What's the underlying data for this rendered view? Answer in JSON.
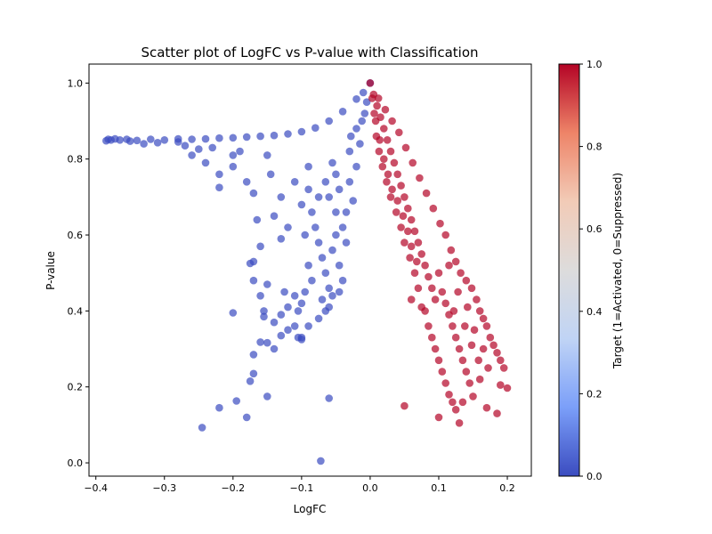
{
  "chart_data": {
    "type": "scatter",
    "title": "Scatter plot of LogFC vs P-value with Classification",
    "xlabel": "LogFC",
    "ylabel": "P-value",
    "xlim": [
      -0.41,
      0.235
    ],
    "ylim": [
      -0.035,
      1.05
    ],
    "xticks": [
      -0.4,
      -0.3,
      -0.2,
      -0.1,
      0.0,
      0.1,
      0.2
    ],
    "xtick_labels": [
      "−0.4",
      "−0.3",
      "−0.2",
      "−0.1",
      "0.0",
      "0.1",
      "0.2"
    ],
    "yticks": [
      0.0,
      0.2,
      0.4,
      0.6,
      0.8,
      1.0
    ],
    "ytick_labels": [
      "0.0",
      "0.2",
      "0.4",
      "0.6",
      "0.8",
      "1.0"
    ],
    "colorbar": {
      "label": "Target (1=Activated, 0=Suppressed)",
      "range": [
        0.0,
        1.0
      ],
      "ticks": [
        0.0,
        0.2,
        0.4,
        0.6,
        0.8,
        1.0
      ],
      "tick_labels": [
        "0.0",
        "0.2",
        "0.4",
        "0.6",
        "0.8",
        "1.0"
      ],
      "colormap": "coolwarm",
      "colors": [
        "#3b4cc0",
        "#7b9ff9",
        "#c0d4f5",
        "#dddcdc",
        "#f2cbb7",
        "#ee8468",
        "#b40426"
      ]
    },
    "series": [
      {
        "target": 0,
        "color": "#3b4cc0",
        "points": [
          [
            -0.385,
            0.848
          ],
          [
            -0.382,
            0.852
          ],
          [
            -0.378,
            0.85
          ],
          [
            -0.372,
            0.853
          ],
          [
            -0.365,
            0.85
          ],
          [
            -0.34,
            0.849
          ],
          [
            -0.32,
            0.852
          ],
          [
            -0.3,
            0.85
          ],
          [
            -0.28,
            0.853
          ],
          [
            -0.26,
            0.852
          ],
          [
            -0.24,
            0.853
          ],
          [
            -0.22,
            0.855
          ],
          [
            -0.2,
            0.856
          ],
          [
            -0.18,
            0.858
          ],
          [
            -0.16,
            0.86
          ],
          [
            -0.14,
            0.862
          ],
          [
            -0.12,
            0.866
          ],
          [
            -0.1,
            0.872
          ],
          [
            -0.08,
            0.882
          ],
          [
            -0.06,
            0.9
          ],
          [
            -0.04,
            0.925
          ],
          [
            -0.02,
            0.958
          ],
          [
            -0.01,
            0.975
          ],
          [
            0.0,
            1.0
          ],
          [
            -0.33,
            0.84
          ],
          [
            -0.27,
            0.835
          ],
          [
            -0.23,
            0.83
          ],
          [
            -0.19,
            0.82
          ],
          [
            -0.15,
            0.81
          ],
          [
            -0.09,
            0.78
          ],
          [
            -0.05,
            0.76
          ],
          [
            -0.03,
            0.82
          ],
          [
            -0.02,
            0.88
          ],
          [
            -0.06,
            0.7
          ],
          [
            -0.05,
            0.66
          ],
          [
            -0.04,
            0.62
          ],
          [
            -0.03,
            0.74
          ],
          [
            -0.025,
            0.69
          ],
          [
            -0.08,
            0.62
          ],
          [
            -0.075,
            0.58
          ],
          [
            -0.07,
            0.54
          ],
          [
            -0.065,
            0.5
          ],
          [
            -0.06,
            0.46
          ],
          [
            -0.055,
            0.56
          ],
          [
            -0.05,
            0.6
          ],
          [
            -0.045,
            0.52
          ],
          [
            -0.04,
            0.48
          ],
          [
            -0.035,
            0.58
          ],
          [
            -0.09,
            0.52
          ],
          [
            -0.085,
            0.48
          ],
          [
            -0.095,
            0.45
          ],
          [
            -0.1,
            0.42
          ],
          [
            -0.105,
            0.4
          ],
          [
            -0.11,
            0.44
          ],
          [
            -0.12,
            0.41
          ],
          [
            -0.13,
            0.39
          ],
          [
            -0.11,
            0.36
          ],
          [
            -0.1,
            0.33
          ],
          [
            -0.12,
            0.35
          ],
          [
            -0.14,
            0.37
          ],
          [
            -0.15,
            0.47
          ],
          [
            -0.16,
            0.44
          ],
          [
            -0.17,
            0.53
          ],
          [
            -0.16,
            0.57
          ],
          [
            -0.13,
            0.59
          ],
          [
            -0.12,
            0.62
          ],
          [
            -0.14,
            0.65
          ],
          [
            -0.17,
            0.71
          ],
          [
            -0.18,
            0.74
          ],
          [
            -0.2,
            0.78
          ],
          [
            -0.22,
            0.76
          ],
          [
            -0.24,
            0.79
          ],
          [
            -0.26,
            0.81
          ],
          [
            -0.22,
            0.725
          ],
          [
            -0.165,
            0.64
          ],
          [
            -0.175,
            0.525
          ],
          [
            -0.17,
            0.48
          ],
          [
            -0.155,
            0.4
          ],
          [
            -0.155,
            0.385
          ],
          [
            -0.16,
            0.318
          ],
          [
            -0.15,
            0.316
          ],
          [
            -0.14,
            0.3
          ],
          [
            -0.13,
            0.335
          ],
          [
            -0.105,
            0.33
          ],
          [
            -0.1,
            0.325
          ],
          [
            -0.17,
            0.285
          ],
          [
            -0.17,
            0.235
          ],
          [
            -0.175,
            0.215
          ],
          [
            -0.2,
            0.395
          ],
          [
            -0.15,
            0.175
          ],
          [
            -0.195,
            0.163
          ],
          [
            -0.22,
            0.145
          ],
          [
            -0.18,
            0.12
          ],
          [
            -0.245,
            0.093
          ],
          [
            -0.06,
            0.17
          ],
          [
            -0.072,
            0.005
          ],
          [
            -0.09,
            0.36
          ],
          [
            -0.075,
            0.38
          ],
          [
            -0.065,
            0.4
          ],
          [
            -0.055,
            0.44
          ],
          [
            -0.045,
            0.45
          ],
          [
            -0.06,
            0.41
          ],
          [
            -0.07,
            0.43
          ],
          [
            -0.125,
            0.45
          ],
          [
            -0.095,
            0.6
          ],
          [
            -0.085,
            0.66
          ],
          [
            -0.075,
            0.7
          ],
          [
            -0.065,
            0.74
          ],
          [
            -0.055,
            0.79
          ],
          [
            -0.045,
            0.72
          ],
          [
            -0.035,
            0.66
          ],
          [
            -0.02,
            0.78
          ],
          [
            -0.015,
            0.84
          ],
          [
            -0.008,
            0.92
          ],
          [
            -0.005,
            0.95
          ],
          [
            -0.012,
            0.9
          ],
          [
            -0.028,
            0.86
          ],
          [
            -0.11,
            0.74
          ],
          [
            -0.13,
            0.7
          ],
          [
            -0.145,
            0.76
          ],
          [
            -0.1,
            0.68
          ],
          [
            -0.09,
            0.72
          ],
          [
            -0.2,
            0.81
          ],
          [
            -0.28,
            0.845
          ],
          [
            -0.31,
            0.843
          ],
          [
            -0.35,
            0.847
          ],
          [
            -0.355,
            0.852
          ],
          [
            -0.25,
            0.826
          ]
        ]
      },
      {
        "target": 1,
        "color": "#b40426",
        "points": [
          [
            0.0,
            1.0
          ],
          [
            0.005,
            0.97
          ],
          [
            0.01,
            0.94
          ],
          [
            0.015,
            0.91
          ],
          [
            0.02,
            0.88
          ],
          [
            0.025,
            0.85
          ],
          [
            0.03,
            0.82
          ],
          [
            0.035,
            0.79
          ],
          [
            0.04,
            0.76
          ],
          [
            0.045,
            0.73
          ],
          [
            0.05,
            0.7
          ],
          [
            0.055,
            0.67
          ],
          [
            0.06,
            0.64
          ],
          [
            0.065,
            0.61
          ],
          [
            0.07,
            0.58
          ],
          [
            0.075,
            0.55
          ],
          [
            0.08,
            0.52
          ],
          [
            0.085,
            0.49
          ],
          [
            0.09,
            0.46
          ],
          [
            0.095,
            0.43
          ],
          [
            0.012,
            0.96
          ],
          [
            0.022,
            0.93
          ],
          [
            0.032,
            0.9
          ],
          [
            0.042,
            0.87
          ],
          [
            0.052,
            0.83
          ],
          [
            0.062,
            0.79
          ],
          [
            0.072,
            0.75
          ],
          [
            0.082,
            0.71
          ],
          [
            0.092,
            0.67
          ],
          [
            0.102,
            0.63
          ],
          [
            0.008,
            0.9
          ],
          [
            0.014,
            0.85
          ],
          [
            0.02,
            0.8
          ],
          [
            0.026,
            0.76
          ],
          [
            0.032,
            0.72
          ],
          [
            0.04,
            0.69
          ],
          [
            0.048,
            0.65
          ],
          [
            0.055,
            0.61
          ],
          [
            0.06,
            0.57
          ],
          [
            0.068,
            0.53
          ],
          [
            0.11,
            0.6
          ],
          [
            0.118,
            0.56
          ],
          [
            0.125,
            0.53
          ],
          [
            0.132,
            0.5
          ],
          [
            0.14,
            0.48
          ],
          [
            0.148,
            0.46
          ],
          [
            0.155,
            0.43
          ],
          [
            0.16,
            0.4
          ],
          [
            0.165,
            0.38
          ],
          [
            0.17,
            0.36
          ],
          [
            0.175,
            0.33
          ],
          [
            0.18,
            0.31
          ],
          [
            0.185,
            0.29
          ],
          [
            0.19,
            0.27
          ],
          [
            0.195,
            0.25
          ],
          [
            0.1,
            0.5
          ],
          [
            0.105,
            0.45
          ],
          [
            0.11,
            0.42
          ],
          [
            0.115,
            0.39
          ],
          [
            0.12,
            0.36
          ],
          [
            0.125,
            0.33
          ],
          [
            0.13,
            0.3
          ],
          [
            0.135,
            0.27
          ],
          [
            0.14,
            0.24
          ],
          [
            0.145,
            0.21
          ],
          [
            0.08,
            0.4
          ],
          [
            0.085,
            0.36
          ],
          [
            0.09,
            0.33
          ],
          [
            0.095,
            0.3
          ],
          [
            0.1,
            0.27
          ],
          [
            0.105,
            0.24
          ],
          [
            0.11,
            0.21
          ],
          [
            0.115,
            0.18
          ],
          [
            0.12,
            0.16
          ],
          [
            0.125,
            0.14
          ],
          [
            0.13,
            0.105
          ],
          [
            0.1,
            0.12
          ],
          [
            0.05,
            0.15
          ],
          [
            0.17,
            0.145
          ],
          [
            0.185,
            0.13
          ],
          [
            0.19,
            0.205
          ],
          [
            0.2,
            0.197
          ],
          [
            0.16,
            0.22
          ],
          [
            0.15,
            0.175
          ],
          [
            0.135,
            0.16
          ],
          [
            0.06,
            0.43
          ],
          [
            0.07,
            0.46
          ],
          [
            0.075,
            0.41
          ],
          [
            0.065,
            0.5
          ],
          [
            0.058,
            0.54
          ],
          [
            0.05,
            0.58
          ],
          [
            0.045,
            0.62
          ],
          [
            0.038,
            0.66
          ],
          [
            0.03,
            0.7
          ],
          [
            0.024,
            0.74
          ],
          [
            0.018,
            0.78
          ],
          [
            0.013,
            0.82
          ],
          [
            0.009,
            0.86
          ],
          [
            0.006,
            0.92
          ],
          [
            0.003,
            0.96
          ],
          [
            0.115,
            0.52
          ],
          [
            0.128,
            0.45
          ],
          [
            0.142,
            0.41
          ],
          [
            0.152,
            0.35
          ],
          [
            0.165,
            0.3
          ],
          [
            0.172,
            0.25
          ],
          [
            0.158,
            0.27
          ],
          [
            0.148,
            0.31
          ],
          [
            0.138,
            0.36
          ],
          [
            0.122,
            0.4
          ]
        ]
      }
    ]
  }
}
